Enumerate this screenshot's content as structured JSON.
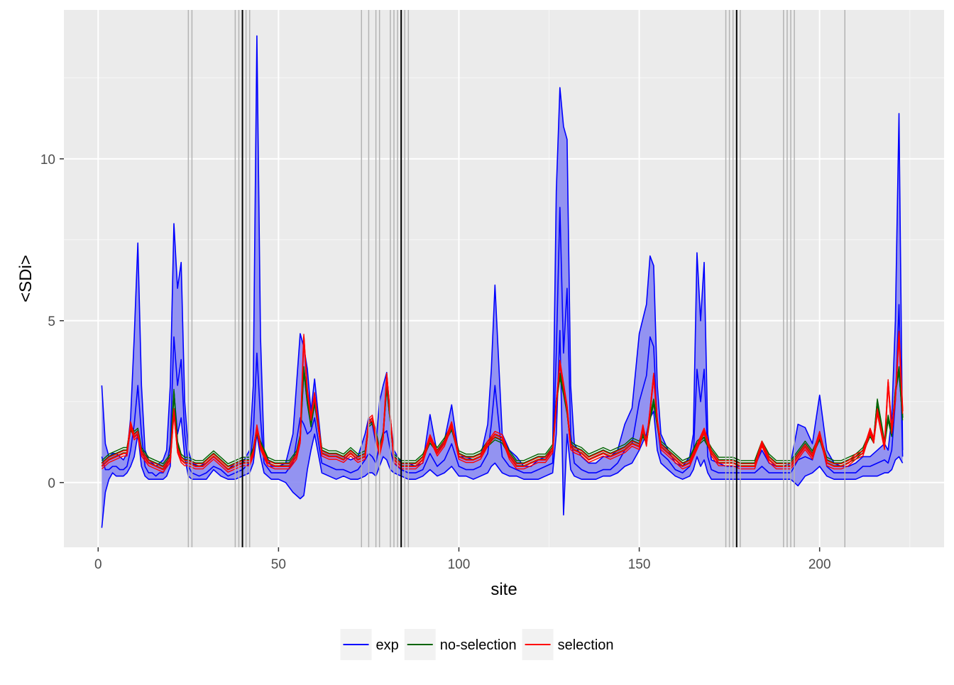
{
  "chart_data": {
    "type": "line",
    "xlabel": "site",
    "ylabel": "<SDi>",
    "xlim": [
      -9.5,
      234.5
    ],
    "ylim": [
      -2.0,
      14.6
    ],
    "x_ticks": [
      0,
      50,
      100,
      150,
      200
    ],
    "x_tick_labels": [
      "0",
      "50",
      "100",
      "150",
      "200"
    ],
    "y_ticks": [
      0,
      5,
      10
    ],
    "y_tick_labels": [
      "0",
      "5",
      "10"
    ],
    "grid": true,
    "legend_position": "bottom",
    "vlines_gray": [
      25,
      26,
      38,
      39,
      41,
      42,
      73,
      75,
      77,
      78,
      81,
      82,
      83,
      85,
      86,
      174,
      175,
      176,
      178,
      190,
      191,
      192,
      193,
      207
    ],
    "vlines_black": [
      40,
      84,
      177
    ],
    "series": [
      {
        "name": "exp",
        "color": "#0000ff",
        "fill": "#8a8af2",
        "x": [
          1,
          2,
          3,
          4,
          5,
          6,
          7,
          8,
          9,
          10,
          11,
          12,
          13,
          14,
          15,
          16,
          17,
          18,
          19,
          20,
          21,
          22,
          23,
          24,
          25,
          26,
          28,
          30,
          32,
          34,
          36,
          38,
          40,
          42,
          43,
          44,
          45,
          46,
          48,
          50,
          52,
          54,
          56,
          57,
          58,
          59,
          60,
          62,
          64,
          66,
          68,
          70,
          72,
          74,
          75,
          76,
          77,
          78,
          79,
          80,
          81,
          82,
          84,
          86,
          88,
          90,
          92,
          94,
          96,
          98,
          100,
          102,
          104,
          106,
          108,
          109,
          110,
          112,
          114,
          116,
          118,
          120,
          122,
          124,
          126,
          127,
          128,
          129,
          130,
          131,
          132,
          134,
          136,
          138,
          140,
          142,
          144,
          146,
          148,
          150,
          152,
          153,
          154,
          155,
          156,
          158,
          160,
          162,
          164,
          165,
          166,
          167,
          168,
          169,
          170,
          172,
          174,
          176,
          178,
          180,
          182,
          184,
          186,
          188,
          190,
          192,
          194,
          196,
          198,
          200,
          202,
          204,
          206,
          208,
          210,
          212,
          214,
          216,
          218,
          219,
          220,
          221,
          222,
          223
        ],
        "upper": [
          3.0,
          1.2,
          0.8,
          0.9,
          0.9,
          0.8,
          0.7,
          0.9,
          2.0,
          4.5,
          7.4,
          3.0,
          1.0,
          0.7,
          0.6,
          0.5,
          0.6,
          0.7,
          1.0,
          3.0,
          8.0,
          6.0,
          6.8,
          2.5,
          1.0,
          0.6,
          0.5,
          0.6,
          0.8,
          0.6,
          0.4,
          0.6,
          0.6,
          1.0,
          3.0,
          13.8,
          4.5,
          1.0,
          0.5,
          0.5,
          0.6,
          1.5,
          4.6,
          4.2,
          3.5,
          2.2,
          3.2,
          1.0,
          0.9,
          0.9,
          0.8,
          0.7,
          0.8,
          1.5,
          2.0,
          1.8,
          1.2,
          2.5,
          3.0,
          3.4,
          2.0,
          1.0,
          0.6,
          0.6,
          0.5,
          0.6,
          2.1,
          0.9,
          1.3,
          2.4,
          0.8,
          0.8,
          0.7,
          0.8,
          1.8,
          3.5,
          6.1,
          1.5,
          1.0,
          0.8,
          0.5,
          0.5,
          0.7,
          0.8,
          1.0,
          9.0,
          12.2,
          11.0,
          10.6,
          3.0,
          1.2,
          0.8,
          0.6,
          0.6,
          0.8,
          0.8,
          1.0,
          1.8,
          2.3,
          4.6,
          5.5,
          7.0,
          6.7,
          3.0,
          1.5,
          1.0,
          0.6,
          0.5,
          0.8,
          1.5,
          7.1,
          5.0,
          6.8,
          1.5,
          0.7,
          0.6,
          0.5,
          0.5,
          0.5,
          0.5,
          0.5,
          1.0,
          0.6,
          0.5,
          0.5,
          0.6,
          1.8,
          1.7,
          1.2,
          2.7,
          1.0,
          0.6,
          0.5,
          0.5,
          0.6,
          0.8,
          0.8,
          1.0,
          1.2,
          1.0,
          2.0,
          5.0,
          11.4,
          1.0
        ],
        "lower": [
          -1.4,
          -0.3,
          0.1,
          0.3,
          0.2,
          0.2,
          0.2,
          0.3,
          0.5,
          0.8,
          1.5,
          0.5,
          0.2,
          0.1,
          0.1,
          0.1,
          0.1,
          0.1,
          0.2,
          0.5,
          2.8,
          1.5,
          2.0,
          0.8,
          0.2,
          0.1,
          0.1,
          0.1,
          0.4,
          0.2,
          0.1,
          0.1,
          0.2,
          0.3,
          0.6,
          1.5,
          0.8,
          0.3,
          0.1,
          0.1,
          0.0,
          -0.3,
          -0.5,
          -0.4,
          0.4,
          1.0,
          1.5,
          0.3,
          0.2,
          0.1,
          0.2,
          0.1,
          0.1,
          0.2,
          0.3,
          0.3,
          0.2,
          0.5,
          0.8,
          0.7,
          0.4,
          0.3,
          0.2,
          0.1,
          0.1,
          0.2,
          0.4,
          0.2,
          0.3,
          0.5,
          0.2,
          0.2,
          0.1,
          0.2,
          0.3,
          0.5,
          0.6,
          0.3,
          0.2,
          0.2,
          0.1,
          0.1,
          0.1,
          0.2,
          0.3,
          1.5,
          4.7,
          -1.0,
          1.5,
          0.4,
          0.2,
          0.1,
          0.1,
          0.1,
          0.2,
          0.2,
          0.3,
          0.5,
          0.6,
          1.0,
          1.5,
          2.0,
          2.2,
          1.0,
          0.6,
          0.4,
          0.2,
          0.1,
          0.2,
          0.4,
          0.8,
          0.5,
          0.7,
          0.3,
          0.1,
          0.1,
          0.1,
          0.1,
          0.1,
          0.1,
          0.1,
          0.1,
          0.1,
          0.1,
          0.1,
          0.1,
          -0.1,
          0.2,
          0.3,
          0.5,
          0.2,
          0.1,
          0.1,
          0.1,
          0.1,
          0.2,
          0.2,
          0.2,
          0.3,
          0.3,
          0.4,
          0.7,
          0.8,
          0.6
        ],
        "mid": [
          0.8,
          0.4,
          0.4,
          0.5,
          0.5,
          0.4,
          0.4,
          0.5,
          1.0,
          1.8,
          3.0,
          1.5,
          0.5,
          0.3,
          0.3,
          0.2,
          0.3,
          0.3,
          0.5,
          1.2,
          4.5,
          3.0,
          3.8,
          1.5,
          0.5,
          0.3,
          0.2,
          0.3,
          0.5,
          0.4,
          0.2,
          0.3,
          0.4,
          0.6,
          1.5,
          4.0,
          2.0,
          0.6,
          0.3,
          0.3,
          0.3,
          0.6,
          2.0,
          1.8,
          1.5,
          1.6,
          2.0,
          0.6,
          0.5,
          0.4,
          0.4,
          0.3,
          0.4,
          0.7,
          0.9,
          0.8,
          0.6,
          1.2,
          1.5,
          1.6,
          1.0,
          0.6,
          0.4,
          0.3,
          0.3,
          0.4,
          0.9,
          0.5,
          0.7,
          1.2,
          0.5,
          0.4,
          0.4,
          0.5,
          0.9,
          1.8,
          3.0,
          0.8,
          0.5,
          0.4,
          0.3,
          0.3,
          0.4,
          0.5,
          0.6,
          4.0,
          8.5,
          4.0,
          6.0,
          1.5,
          0.6,
          0.4,
          0.3,
          0.3,
          0.4,
          0.4,
          0.6,
          1.0,
          1.2,
          2.5,
          3.3,
          4.5,
          4.2,
          1.8,
          0.9,
          0.7,
          0.4,
          0.3,
          0.5,
          0.8,
          3.5,
          2.5,
          3.5,
          0.8,
          0.4,
          0.3,
          0.3,
          0.3,
          0.3,
          0.3,
          0.3,
          0.5,
          0.3,
          0.3,
          0.3,
          0.3,
          0.7,
          0.8,
          0.7,
          1.5,
          0.5,
          0.3,
          0.3,
          0.3,
          0.3,
          0.5,
          0.5,
          0.6,
          0.7,
          0.6,
          1.0,
          2.5,
          5.5,
          0.8
        ]
      },
      {
        "name": "no-selection",
        "color": "#006400",
        "x": [
          1,
          3,
          5,
          7,
          8,
          9,
          10,
          11,
          12,
          14,
          16,
          18,
          20,
          21,
          22,
          23,
          24,
          25,
          27,
          29,
          31,
          32,
          34,
          36,
          38,
          40,
          42,
          43,
          44,
          45,
          47,
          49,
          51,
          53,
          55,
          56,
          57,
          58,
          59,
          60,
          62,
          64,
          66,
          68,
          70,
          72,
          74,
          75,
          76,
          77,
          78,
          79,
          80,
          82,
          84,
          86,
          88,
          90,
          92,
          94,
          96,
          98,
          100,
          102,
          104,
          106,
          108,
          110,
          112,
          114,
          116,
          118,
          120,
          122,
          124,
          126,
          127,
          128,
          129,
          130,
          131,
          132,
          134,
          136,
          138,
          140,
          142,
          144,
          146,
          148,
          150,
          151,
          152,
          153,
          154,
          155,
          156,
          158,
          160,
          162,
          164,
          166,
          168,
          170,
          172,
          174,
          176,
          178,
          180,
          182,
          184,
          186,
          188,
          190,
          192,
          194,
          196,
          198,
          200,
          202,
          204,
          206,
          208,
          210,
          212,
          214,
          215,
          216,
          218,
          219,
          220,
          221,
          222,
          223
        ],
        "y": [
          0.6,
          0.8,
          0.9,
          1.0,
          1.0,
          1.7,
          1.5,
          1.6,
          1.0,
          0.7,
          0.6,
          0.5,
          0.8,
          2.8,
          1.2,
          0.8,
          0.7,
          0.7,
          0.6,
          0.6,
          0.8,
          0.9,
          0.7,
          0.5,
          0.6,
          0.7,
          0.7,
          1.0,
          1.6,
          1.2,
          0.7,
          0.6,
          0.6,
          0.6,
          0.9,
          1.4,
          3.5,
          2.5,
          1.8,
          2.5,
          1.0,
          0.9,
          0.9,
          0.8,
          1.0,
          0.8,
          0.9,
          1.8,
          1.9,
          1.5,
          1.0,
          1.5,
          3.0,
          0.8,
          0.6,
          0.6,
          0.6,
          0.8,
          1.3,
          1.0,
          1.3,
          1.7,
          0.9,
          0.8,
          0.8,
          0.9,
          1.2,
          1.4,
          1.3,
          0.9,
          0.6,
          0.6,
          0.7,
          0.8,
          0.8,
          1.1,
          2.5,
          3.3,
          2.8,
          2.2,
          1.2,
          1.1,
          1.0,
          0.8,
          0.9,
          1.0,
          0.9,
          1.0,
          1.1,
          1.3,
          1.2,
          1.5,
          1.3,
          2.0,
          2.5,
          1.8,
          1.2,
          1.0,
          0.8,
          0.6,
          0.7,
          1.2,
          1.4,
          1.0,
          0.7,
          0.7,
          0.7,
          0.6,
          0.6,
          0.6,
          1.2,
          0.8,
          0.6,
          0.6,
          0.6,
          0.9,
          1.2,
          0.9,
          1.4,
          0.7,
          0.6,
          0.6,
          0.7,
          0.8,
          1.0,
          1.5,
          1.3,
          2.5,
          1.2,
          2.0,
          1.5,
          2.8,
          3.5,
          2.0
        ]
      },
      {
        "name": "selection",
        "color": "#ff0000",
        "x": [
          1,
          3,
          5,
          7,
          8,
          9,
          10,
          11,
          12,
          14,
          16,
          18,
          20,
          21,
          22,
          23,
          24,
          25,
          27,
          29,
          31,
          32,
          34,
          36,
          38,
          40,
          42,
          43,
          44,
          45,
          47,
          49,
          51,
          53,
          55,
          56,
          57,
          58,
          59,
          60,
          62,
          64,
          66,
          68,
          70,
          72,
          74,
          75,
          76,
          77,
          78,
          79,
          80,
          82,
          84,
          86,
          88,
          90,
          92,
          94,
          96,
          98,
          100,
          102,
          104,
          106,
          108,
          110,
          112,
          114,
          116,
          118,
          120,
          122,
          124,
          126,
          127,
          128,
          129,
          130,
          131,
          132,
          134,
          136,
          138,
          140,
          142,
          144,
          146,
          148,
          150,
          151,
          152,
          153,
          154,
          155,
          156,
          158,
          160,
          162,
          164,
          166,
          168,
          170,
          172,
          174,
          176,
          178,
          180,
          182,
          184,
          186,
          188,
          190,
          192,
          194,
          196,
          198,
          200,
          202,
          204,
          206,
          208,
          210,
          212,
          214,
          215,
          216,
          218,
          219,
          220,
          221,
          222,
          223
        ],
        "y": [
          0.5,
          0.7,
          0.8,
          0.9,
          0.9,
          1.8,
          1.4,
          1.5,
          0.9,
          0.6,
          0.5,
          0.4,
          0.7,
          2.2,
          1.0,
          0.7,
          0.6,
          0.6,
          0.5,
          0.5,
          0.7,
          0.8,
          0.6,
          0.4,
          0.5,
          0.6,
          0.6,
          0.9,
          1.7,
          1.1,
          0.6,
          0.5,
          0.5,
          0.5,
          0.8,
          1.3,
          4.5,
          2.8,
          2.0,
          2.7,
          0.9,
          0.8,
          0.8,
          0.7,
          0.9,
          0.7,
          0.8,
          1.9,
          2.0,
          1.4,
          0.9,
          1.4,
          3.3,
          0.7,
          0.5,
          0.5,
          0.5,
          0.7,
          1.4,
          0.9,
          1.2,
          1.8,
          0.8,
          0.7,
          0.7,
          0.8,
          1.2,
          1.5,
          1.4,
          0.8,
          0.5,
          0.5,
          0.6,
          0.7,
          0.7,
          1.0,
          2.4,
          3.7,
          3.0,
          2.3,
          1.1,
          1.0,
          0.9,
          0.7,
          0.8,
          0.9,
          0.8,
          0.9,
          1.0,
          1.2,
          1.1,
          1.7,
          1.2,
          2.2,
          3.3,
          1.9,
          1.1,
          0.9,
          0.7,
          0.5,
          0.6,
          1.1,
          1.6,
          0.9,
          0.6,
          0.6,
          0.6,
          0.5,
          0.5,
          0.5,
          1.2,
          0.7,
          0.5,
          0.5,
          0.5,
          0.8,
          1.1,
          0.8,
          1.5,
          0.6,
          0.5,
          0.5,
          0.6,
          0.8,
          0.9,
          1.6,
          1.3,
          2.2,
          1.1,
          3.1,
          1.6,
          2.6,
          4.6,
          2.2
        ]
      }
    ]
  }
}
